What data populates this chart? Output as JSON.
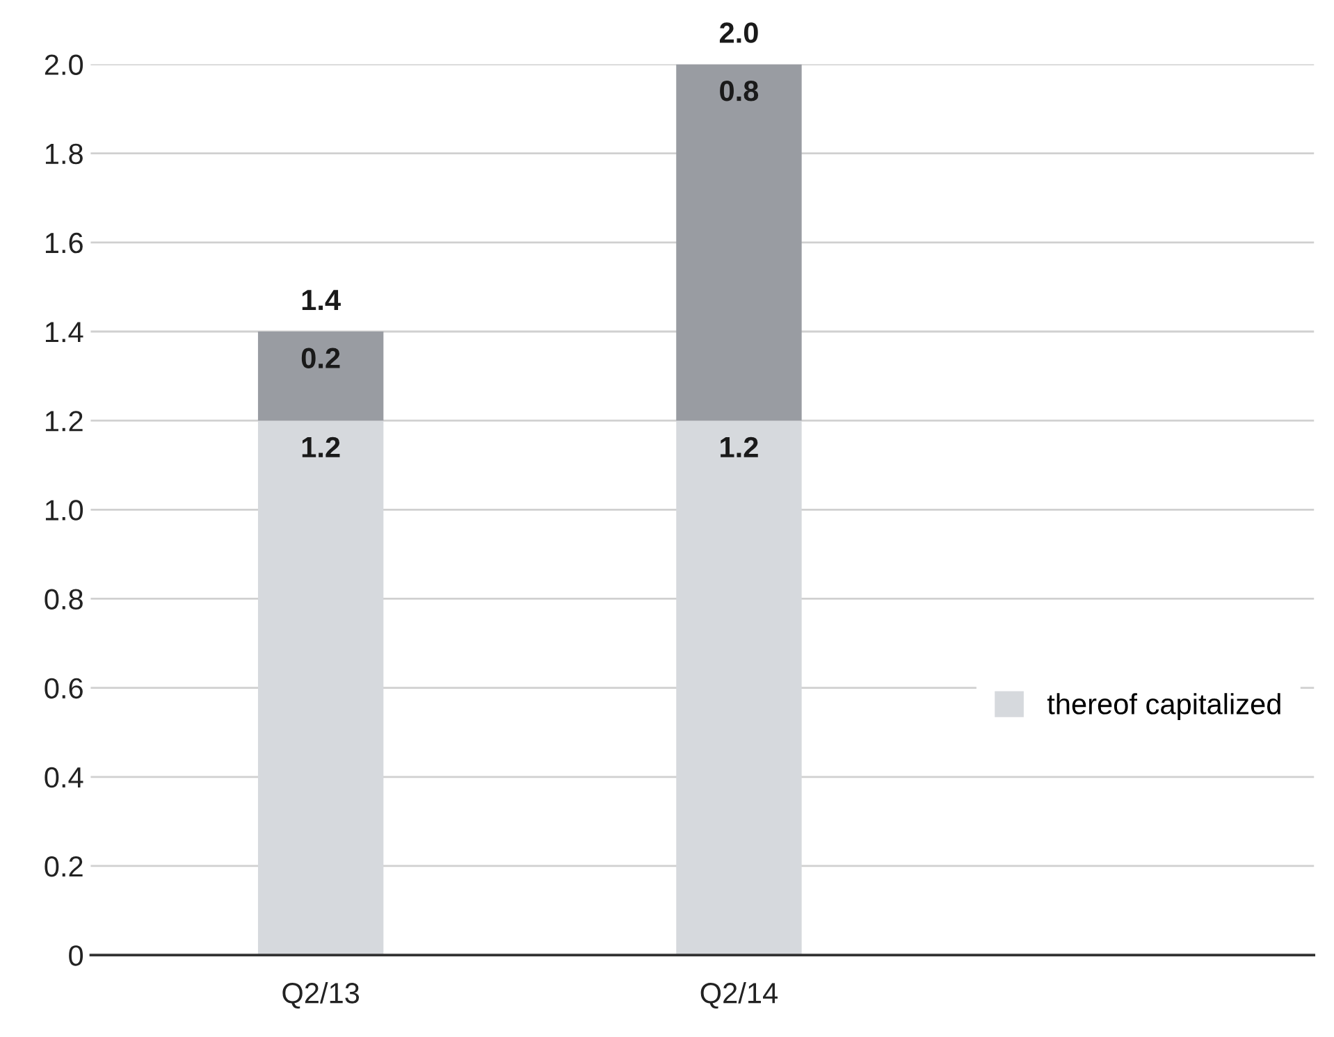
{
  "chart_data": {
    "type": "bar",
    "stacked": true,
    "categories": [
      "Q2/13",
      "Q2/14"
    ],
    "series": [
      {
        "name": "thereof capitalized",
        "color": "#d6d9dd",
        "values": [
          1.2,
          1.2
        ]
      },
      {
        "color": "#999ca2",
        "values": [
          0.2,
          0.8
        ]
      }
    ],
    "totals": [
      "1.4",
      "2.0"
    ],
    "data_labels": true,
    "ylim": [
      0,
      2
    ],
    "yticks": [
      0,
      0.2,
      0.4,
      0.6,
      0.8,
      {
        "value": 1,
        "label": "1.0"
      },
      1.2,
      1.4,
      1.6,
      1.8,
      {
        "value": 2,
        "label": "2.0"
      }
    ],
    "grid": "y",
    "legend": "right"
  }
}
